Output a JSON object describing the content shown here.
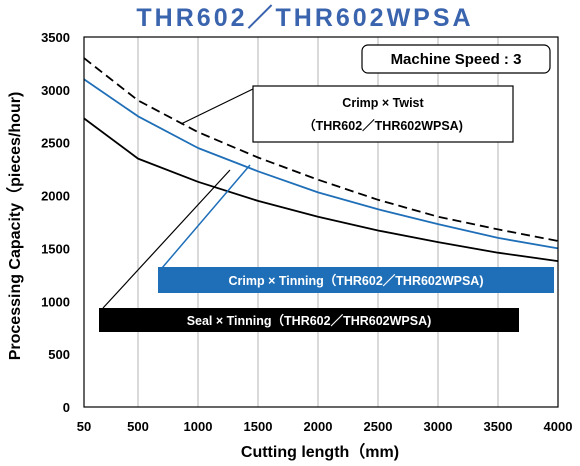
{
  "chart_data": {
    "type": "line",
    "title": "THR602／THR602WPSA",
    "xlabel": "Cutting length（mm)",
    "ylabel": "Processing Capacity（pieces/hour)",
    "x_ticks": [
      "50",
      "500",
      "1000",
      "1500",
      "2000",
      "2500",
      "3000",
      "3500",
      "4000"
    ],
    "x_tick_values": [
      50,
      500,
      1000,
      1500,
      2000,
      2500,
      3000,
      3500,
      4000
    ],
    "y_ticks": [
      "0",
      "500",
      "1000",
      "1500",
      "2000",
      "2500",
      "3000",
      "3500"
    ],
    "xlim": [
      50,
      4000
    ],
    "ylim": [
      0,
      3500
    ],
    "grid": "vertical",
    "speed_box": "Machine Speed : 3",
    "series": [
      {
        "annotation": "Crimp × Twist",
        "annotation_line2": "（THR602／THR602WPSA)",
        "color": "#000000",
        "style": "dashed",
        "x": [
          50,
          500,
          1000,
          1500,
          2000,
          2500,
          3000,
          3500,
          4000
        ],
        "y": [
          3300,
          2900,
          2600,
          2360,
          2150,
          1960,
          1800,
          1680,
          1570
        ]
      },
      {
        "annotation": "Crimp × Tinning（THR602／THR602WPSA)",
        "color": "#1f6fb8",
        "style": "solid",
        "x": [
          50,
          500,
          1000,
          1500,
          2000,
          2500,
          3000,
          3500,
          4000
        ],
        "y": [
          3100,
          2750,
          2450,
          2230,
          2030,
          1870,
          1730,
          1600,
          1500
        ]
      },
      {
        "annotation": "Seal × Tinning（THR602／THR602WPSA)",
        "color": "#000000",
        "style": "solid",
        "x": [
          50,
          500,
          1000,
          1500,
          2000,
          2500,
          3000,
          3500,
          4000
        ],
        "y": [
          2730,
          2350,
          2130,
          1950,
          1800,
          1670,
          1560,
          1460,
          1380
        ]
      }
    ]
  }
}
